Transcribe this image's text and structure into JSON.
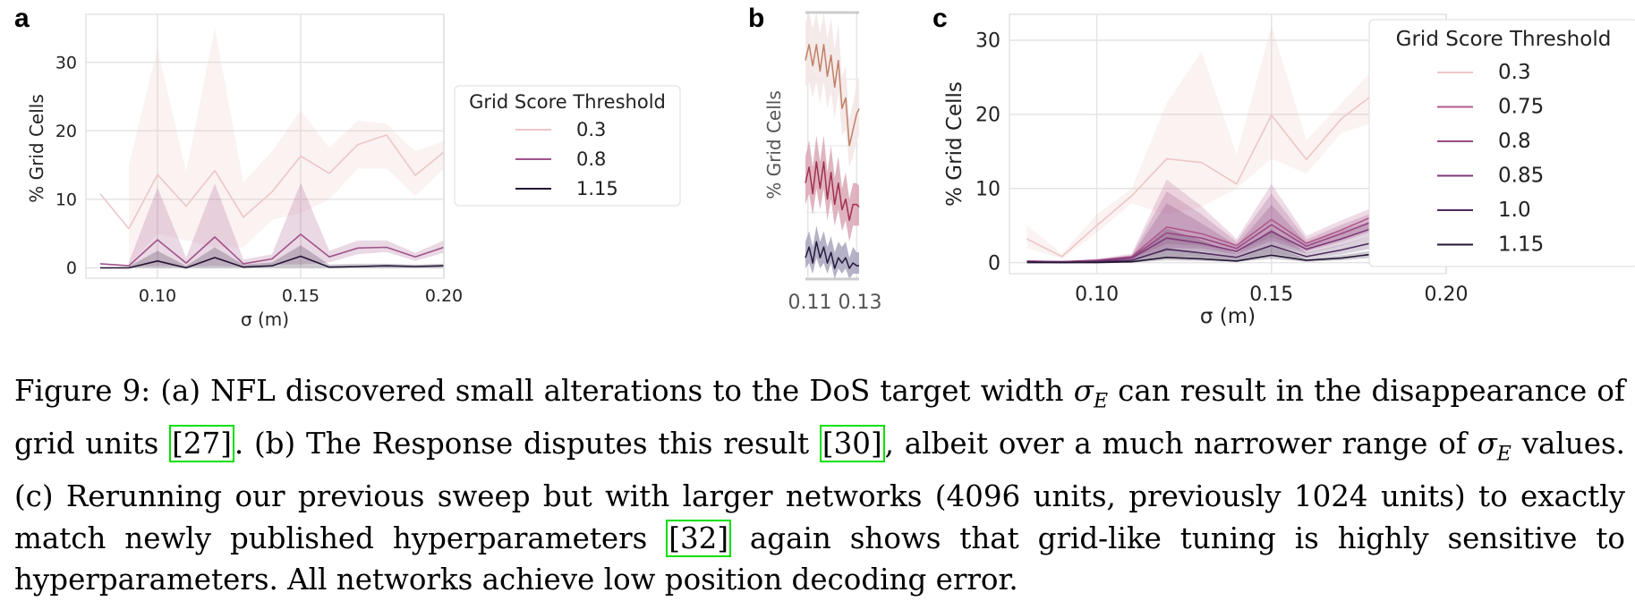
{
  "panels": {
    "a": {
      "letter": "a",
      "ylabel": "% Grid Cells",
      "xlabel": "σ (m)",
      "xticks": [
        "0.10",
        "0.15",
        "0.20"
      ],
      "yticks": [
        "0",
        "10",
        "20",
        "30"
      ],
      "legend_title": "Grid Score Threshold",
      "legend_labels": [
        "0.3",
        "0.8",
        "1.15"
      ]
    },
    "b": {
      "letter": "b",
      "ylabel": "% Grid Cells",
      "xtick_text": "0.11 0.13"
    },
    "c": {
      "letter": "c",
      "ylabel": "% Grid Cells",
      "xlabel": "σ (m)",
      "xticks": [
        "0.10",
        "0.15",
        "0.20"
      ],
      "yticks": [
        "0",
        "10",
        "20",
        "30"
      ],
      "legend_title": "Grid Score Threshold",
      "legend_labels": [
        "0.3",
        "0.75",
        "0.8",
        "0.85",
        "1.0",
        "1.15"
      ]
    }
  },
  "caption": {
    "label": "Figure 9:",
    "part1": "(a) NFL discovered small alterations to the DoS target width",
    "sym1": "σ",
    "sub1": "E",
    "part2": "can result in the disappearance of grid units",
    "ref1": "[27]",
    "part3": ". (b) The Response disputes this result",
    "ref2": "[30]",
    "part4": ", albeit over a much narrower range of",
    "sym2": "σ",
    "sub2": "E",
    "part5": "values. (c) Rerunning our previous sweep but with larger networks (4096 units, previously 1024 units) to exactly match newly published hyperparameters",
    "ref3": "[32]",
    "part6": "again shows that grid-like tuning is highly sensitive to hyperparameters. All networks achieve low position decoding error."
  },
  "chart_data": [
    {
      "type": "line",
      "panel": "a",
      "xlabel": "σ (m)",
      "ylabel": "% Grid Cells",
      "xlim": [
        0.075,
        0.2
      ],
      "ylim": [
        -1.5,
        37
      ],
      "grid": true,
      "legend_title": "Grid Score Threshold",
      "legend_position": "right",
      "x": [
        0.08,
        0.09,
        0.1,
        0.11,
        0.12,
        0.13,
        0.14,
        0.15,
        0.16,
        0.17,
        0.18,
        0.19,
        0.2
      ],
      "series": [
        {
          "name": "0.3",
          "color": "#eec6c6",
          "mean": [
            10.8,
            5.7,
            13.6,
            9.0,
            14.2,
            7.4,
            11.1,
            16.3,
            13.8,
            18.0,
            19.4,
            13.5,
            16.9
          ],
          "lo": [
            null,
            0.5,
            5.0,
            4.0,
            3.0,
            3.0,
            7.0,
            8.0,
            10.0,
            14.5,
            14.5,
            10.5,
            14.5
          ],
          "hi": [
            null,
            15.0,
            32.0,
            14.0,
            35.0,
            12.5,
            17.0,
            23.0,
            17.5,
            21.5,
            21.0,
            17.0,
            18.5
          ]
        },
        {
          "name": "0.8",
          "color": "#a0538a",
          "mean": [
            0.6,
            0.3,
            4.1,
            0.7,
            4.5,
            0.6,
            1.3,
            4.9,
            1.6,
            2.9,
            3.0,
            1.6,
            3.0
          ],
          "lo": [
            null,
            0.1,
            0.3,
            0.2,
            0.3,
            0.2,
            0.5,
            0.5,
            0.8,
            2.0,
            2.3,
            1.0,
            2.2
          ],
          "hi": [
            null,
            0.8,
            11.7,
            1.5,
            12.3,
            1.2,
            2.0,
            12.4,
            2.5,
            4.0,
            4.0,
            2.2,
            4.0
          ]
        },
        {
          "name": "1.15",
          "color": "#231433",
          "mean": [
            0.0,
            0.0,
            1.0,
            0.0,
            1.5,
            0.1,
            0.3,
            1.7,
            0.1,
            0.2,
            0.3,
            0.2,
            0.3
          ],
          "lo": [
            null,
            0.0,
            0.0,
            0.0,
            0.0,
            0.0,
            0.0,
            0.0,
            0.0,
            0.0,
            0.0,
            0.0,
            0.0
          ],
          "hi": [
            null,
            0.2,
            2.5,
            0.3,
            3.0,
            0.5,
            0.8,
            3.3,
            0.5,
            0.6,
            0.6,
            0.5,
            0.6
          ]
        }
      ]
    },
    {
      "type": "line",
      "panel": "b",
      "ylabel": "% Grid Cells",
      "xlim": [
        0.109,
        0.131
      ],
      "ylim": [
        0,
        100
      ],
      "grid": true,
      "x": [
        0.109,
        0.1105,
        0.112,
        0.1135,
        0.115,
        0.1165,
        0.118,
        0.1195,
        0.121,
        0.1225,
        0.124,
        0.1255,
        0.127,
        0.1285,
        0.13,
        0.131
      ],
      "series": [
        {
          "color": "#c08066",
          "band_color": "#f3e6e6",
          "mean": [
            82,
            88,
            80,
            88,
            78,
            88,
            76,
            84,
            72,
            82,
            64,
            68,
            50,
            56,
            62,
            64
          ],
          "lo": [
            72,
            74,
            68,
            74,
            66,
            74,
            64,
            70,
            60,
            70,
            54,
            56,
            42,
            46,
            52,
            54
          ],
          "hi": [
            96,
            100,
            94,
            100,
            92,
            100,
            90,
            98,
            86,
            96,
            76,
            80,
            60,
            66,
            74,
            76
          ]
        },
        {
          "color": "#a2304f",
          "band_color": "#d9a7b5",
          "mean": [
            36,
            42,
            32,
            44,
            34,
            44,
            30,
            40,
            28,
            36,
            26,
            30,
            22,
            28,
            28,
            27
          ],
          "lo": [
            28,
            32,
            24,
            34,
            26,
            34,
            22,
            30,
            20,
            26,
            18,
            22,
            14,
            20,
            20,
            20
          ],
          "hi": [
            46,
            52,
            42,
            54,
            44,
            54,
            40,
            50,
            38,
            46,
            34,
            40,
            30,
            36,
            36,
            35
          ]
        },
        {
          "color": "#25193c",
          "band_color": "#a8a4bd",
          "mean": [
            8,
            12,
            6,
            14,
            8,
            12,
            6,
            10,
            4,
            8,
            6,
            8,
            4,
            6,
            5,
            5
          ],
          "lo": [
            4,
            6,
            2,
            8,
            4,
            6,
            2,
            6,
            0,
            4,
            2,
            4,
            0,
            2,
            2,
            2
          ],
          "hi": [
            14,
            18,
            12,
            20,
            14,
            18,
            12,
            16,
            10,
            14,
            12,
            14,
            8,
            12,
            10,
            10
          ]
        }
      ]
    },
    {
      "type": "line",
      "panel": "c",
      "xlabel": "σ (m)",
      "ylabel": "% Grid Cells",
      "xlim": [
        0.075,
        0.2
      ],
      "ylim": [
        -1.5,
        33.5
      ],
      "grid": true,
      "legend_title": "Grid Score Threshold",
      "legend_position": "right",
      "x": [
        0.08,
        0.09,
        0.1,
        0.11,
        0.12,
        0.13,
        0.14,
        0.15,
        0.16,
        0.17,
        0.18,
        0.19,
        0.2
      ],
      "series": [
        {
          "name": "0.3",
          "color": "#eec6c6",
          "mean": [
            3.2,
            0.8,
            5.0,
            9.0,
            14.0,
            13.5,
            10.6,
            19.9,
            13.9,
            19.4,
            23.0,
            18.3,
            15.6
          ],
          "lo": [
            2.0,
            0.5,
            4.0,
            8.0,
            6.5,
            7.5,
            10.0,
            14.0,
            12.0,
            17.5,
            19.0,
            16.0,
            13.5
          ],
          "hi": [
            5.0,
            1.2,
            6.5,
            10.0,
            21.5,
            28.5,
            14.5,
            32.0,
            16.5,
            21.5,
            26.5,
            22.5,
            18.5
          ]
        },
        {
          "name": "0.75",
          "color": "#b05a8c",
          "mean": [
            0.2,
            0.1,
            0.3,
            0.8,
            4.8,
            3.9,
            2.3,
            5.8,
            2.6,
            4.4,
            6.4,
            4.3,
            3.4
          ],
          "lo": [
            0.1,
            0.0,
            0.2,
            0.5,
            2.5,
            2.3,
            1.4,
            3.4,
            1.8,
            3.2,
            5.0,
            3.3,
            2.4
          ],
          "hi": [
            0.3,
            0.2,
            0.5,
            1.2,
            11.2,
            7.6,
            3.2,
            10.6,
            3.6,
            5.7,
            7.6,
            5.6,
            4.6
          ]
        },
        {
          "name": "0.8",
          "color": "#9b4a86",
          "mean": [
            0.2,
            0.1,
            0.3,
            0.7,
            4.0,
            3.3,
            1.9,
            5.1,
            2.2,
            3.9,
            5.7,
            3.8,
            3.0
          ],
          "lo": [
            0.1,
            0.0,
            0.2,
            0.4,
            2.0,
            1.9,
            1.1,
            2.9,
            1.5,
            2.8,
            4.4,
            2.9,
            2.1
          ],
          "hi": [
            0.3,
            0.2,
            0.4,
            1.0,
            9.6,
            6.5,
            2.8,
            9.3,
            3.1,
            5.1,
            6.9,
            4.9,
            4.0
          ]
        },
        {
          "name": "0.85",
          "color": "#7d3a78",
          "mean": [
            0.1,
            0.1,
            0.2,
            0.6,
            3.3,
            2.6,
            1.5,
            4.2,
            1.8,
            3.2,
            4.8,
            3.2,
            2.5
          ],
          "lo": [
            0.1,
            0.0,
            0.1,
            0.3,
            1.6,
            1.5,
            0.8,
            2.3,
            1.2,
            2.3,
            3.7,
            2.4,
            1.7
          ],
          "hi": [
            0.2,
            0.1,
            0.3,
            0.8,
            8.0,
            5.3,
            2.3,
            7.8,
            2.6,
            4.3,
            5.9,
            4.1,
            3.3
          ]
        },
        {
          "name": "1.0",
          "color": "#4e2a5c",
          "mean": [
            0.1,
            0.0,
            0.1,
            0.3,
            1.8,
            1.3,
            0.7,
            2.3,
            0.8,
            1.7,
            2.8,
            1.6,
            1.2
          ],
          "lo": [
            0.0,
            0.0,
            0.0,
            0.1,
            0.8,
            0.7,
            0.3,
            1.2,
            0.5,
            1.1,
            2.0,
            1.1,
            0.8
          ],
          "hi": [
            0.1,
            0.1,
            0.2,
            0.5,
            4.6,
            3.0,
            1.2,
            4.5,
            1.3,
            2.4,
            3.7,
            2.2,
            1.7
          ]
        },
        {
          "name": "1.15",
          "color": "#231433",
          "mean": [
            0.0,
            0.0,
            0.0,
            0.1,
            0.7,
            0.5,
            0.2,
            1.0,
            0.3,
            0.6,
            1.2,
            0.6,
            0.4
          ],
          "lo": [
            0.0,
            0.0,
            0.0,
            0.0,
            0.3,
            0.2,
            0.1,
            0.5,
            0.1,
            0.3,
            0.7,
            0.3,
            0.2
          ],
          "hi": [
            0.0,
            0.0,
            0.1,
            0.2,
            2.0,
            1.2,
            0.5,
            2.2,
            0.5,
            1.0,
            1.7,
            0.9,
            0.7
          ]
        }
      ]
    }
  ]
}
